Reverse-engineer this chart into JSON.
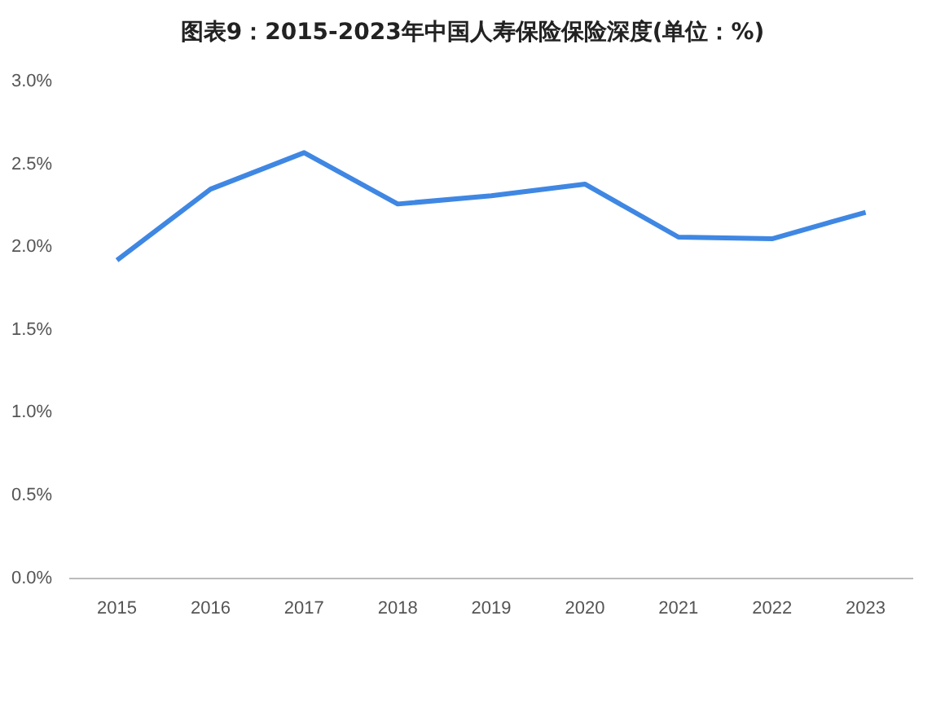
{
  "chart_data": {
    "type": "line",
    "title": "图表9：2015-2023年中国人寿保险保险深度(单位：%)",
    "categories": [
      "2015",
      "2016",
      "2017",
      "2018",
      "2019",
      "2020",
      "2021",
      "2022",
      "2023"
    ],
    "series": [
      {
        "color": "#3f87e3",
        "values": [
          1.92,
          2.35,
          2.57,
          2.26,
          2.31,
          2.38,
          2.06,
          2.05,
          2.21
        ]
      }
    ],
    "ylim": [
      0,
      3
    ],
    "yticks": [
      {
        "value": 0,
        "label": "0.0%"
      },
      {
        "value": 0.5,
        "label": "0.5%"
      },
      {
        "value": 1,
        "label": "1.0%"
      },
      {
        "value": 1.5,
        "label": "1.5%"
      },
      {
        "value": 2,
        "label": "2.0%"
      },
      {
        "value": 2.5,
        "label": "2.5%"
      },
      {
        "value": 3,
        "label": "3.0%"
      }
    ],
    "grid": false,
    "legend": false,
    "marker": "none",
    "line_style": "solid"
  }
}
